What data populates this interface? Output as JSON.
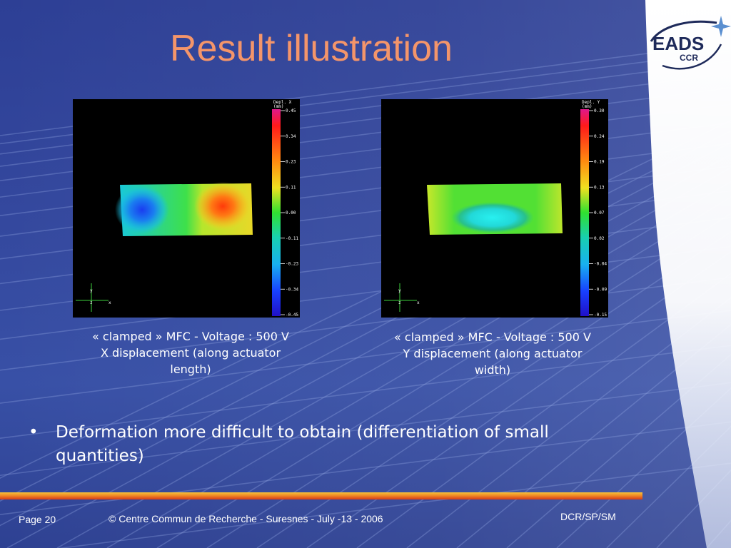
{
  "slide": {
    "title": "Result illustration",
    "logo": {
      "main": "EADS",
      "sub": "CCR"
    },
    "figures": [
      {
        "colorbar_title": [
          "Depl. X",
          "(mm)"
        ],
        "colorbar_ticks": [
          "0.45",
          "0.34",
          "0.23",
          "0.11",
          "0.00",
          "-0.11",
          "-0.23",
          "-0.34",
          "-0.45"
        ],
        "axis_labels": {
          "y": "y",
          "x": "x",
          "z": "z"
        },
        "caption": [
          "« clamped » MFC - Voltage : 500 V",
          "X displacement (along actuator",
          "length)"
        ]
      },
      {
        "colorbar_title": [
          "Depl. Y",
          "(mm)"
        ],
        "colorbar_ticks": [
          "0.30",
          "0.24",
          "0.19",
          "0.13",
          "0.07",
          "0.02",
          "-0.04",
          "-0.09",
          "-0.15"
        ],
        "axis_labels": {
          "y": "y",
          "x": "x",
          "z": "z"
        },
        "caption": [
          "« clamped » MFC - Voltage : 500 V",
          "Y displacement (along actuator",
          "width)"
        ]
      }
    ],
    "bullet": {
      "symbol": "•",
      "text": "Deformation more difficult to obtain (differentiation of small quantities)"
    },
    "footer": {
      "page": "Page 20",
      "copyright": "© Centre Commun de Recherche  - Suresnes - July -13 - 2006",
      "code": "DCR/SP/SM"
    },
    "colors": {
      "background": "#3347a0",
      "title": "#f4956a",
      "text": "#ffffff",
      "footer_bar": [
        "#f6c33a",
        "#f08a25",
        "#d63a18"
      ]
    }
  }
}
